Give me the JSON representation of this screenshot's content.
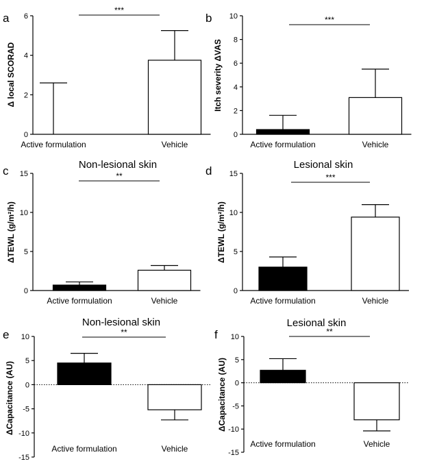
{
  "chart_data": [
    {
      "panel": "a",
      "type": "bar",
      "categories": [
        "Active formulation",
        "Vehicle"
      ],
      "values": [
        0.0,
        3.75
      ],
      "errors": [
        2.6,
        1.5
      ],
      "fills": [
        "#000000",
        "#ffffff"
      ],
      "title": "",
      "ylabel": "Δ local SCORAD",
      "ylim": [
        0,
        6
      ],
      "yticks": [
        0,
        2,
        4,
        6
      ],
      "yticklabels": [
        "0",
        "2",
        "4",
        "6"
      ],
      "significance": "***"
    },
    {
      "panel": "b",
      "type": "bar",
      "categories": [
        "Active formulation",
        "Vehicle"
      ],
      "values": [
        0.4,
        3.1
      ],
      "errors": [
        1.2,
        2.4
      ],
      "fills": [
        "#000000",
        "#ffffff"
      ],
      "title": "",
      "ylabel": "Itch severity ΔVAS",
      "ylim": [
        0,
        10
      ],
      "yticks": [
        0,
        2,
        4,
        6,
        8,
        10
      ],
      "yticklabels": [
        "0",
        "2",
        "4",
        "6",
        "8",
        "10"
      ],
      "significance": "***"
    },
    {
      "panel": "c",
      "type": "bar",
      "categories": [
        "Active formulation",
        "Vehicle"
      ],
      "values": [
        0.7,
        2.6
      ],
      "errors": [
        0.4,
        0.6
      ],
      "fills": [
        "#000000",
        "#ffffff"
      ],
      "title": "Non-lesional skin",
      "ylabel": "ΔTEWL (g/m²/h)",
      "ylim": [
        0,
        15
      ],
      "yticks": [
        0,
        5,
        10,
        15
      ],
      "yticklabels": [
        "0",
        "5",
        "10",
        "15"
      ],
      "significance": "**"
    },
    {
      "panel": "d",
      "type": "bar",
      "categories": [
        "Active formulation",
        "Vehicle"
      ],
      "values": [
        3.0,
        9.4
      ],
      "errors": [
        1.3,
        1.6
      ],
      "fills": [
        "#000000",
        "#ffffff"
      ],
      "title": "Lesional skin",
      "ylabel": "ΔTEWL (g/m²/h)",
      "ylim": [
        0,
        15
      ],
      "yticks": [
        0,
        5,
        10,
        15
      ],
      "yticklabels": [
        "0",
        "5",
        "10",
        "15"
      ],
      "significance": "***"
    },
    {
      "panel": "e",
      "type": "bar",
      "categories": [
        "Active formulation",
        "Vehicle"
      ],
      "values": [
        4.5,
        -5.2
      ],
      "errors": [
        2.0,
        2.1
      ],
      "fills": [
        "#000000",
        "#ffffff"
      ],
      "title": "Non-lesional skin",
      "ylabel": "ΔCapacitance (AU)",
      "ylim": [
        -15,
        10
      ],
      "yticks": [
        -15,
        -10,
        -5,
        0,
        5,
        10
      ],
      "yticklabels": [
        "-15",
        "-10",
        "-5",
        "0",
        "5",
        "10"
      ],
      "zero_line": "dotted",
      "significance": "**"
    },
    {
      "panel": "f",
      "type": "bar",
      "categories": [
        "Active formulation",
        "Vehicle"
      ],
      "values": [
        2.7,
        -8.0
      ],
      "errors": [
        2.5,
        2.4
      ],
      "fills": [
        "#000000",
        "#ffffff"
      ],
      "title": "Lesional skin",
      "ylabel": "ΔCapacitance (AU)",
      "ylim": [
        -15,
        10
      ],
      "yticks": [
        -15,
        -10,
        -5,
        0,
        5,
        10
      ],
      "yticklabels": [
        "-15",
        "-10",
        "-5",
        "0",
        "5",
        "10"
      ],
      "zero_line": "dotted",
      "significance": "**"
    }
  ]
}
